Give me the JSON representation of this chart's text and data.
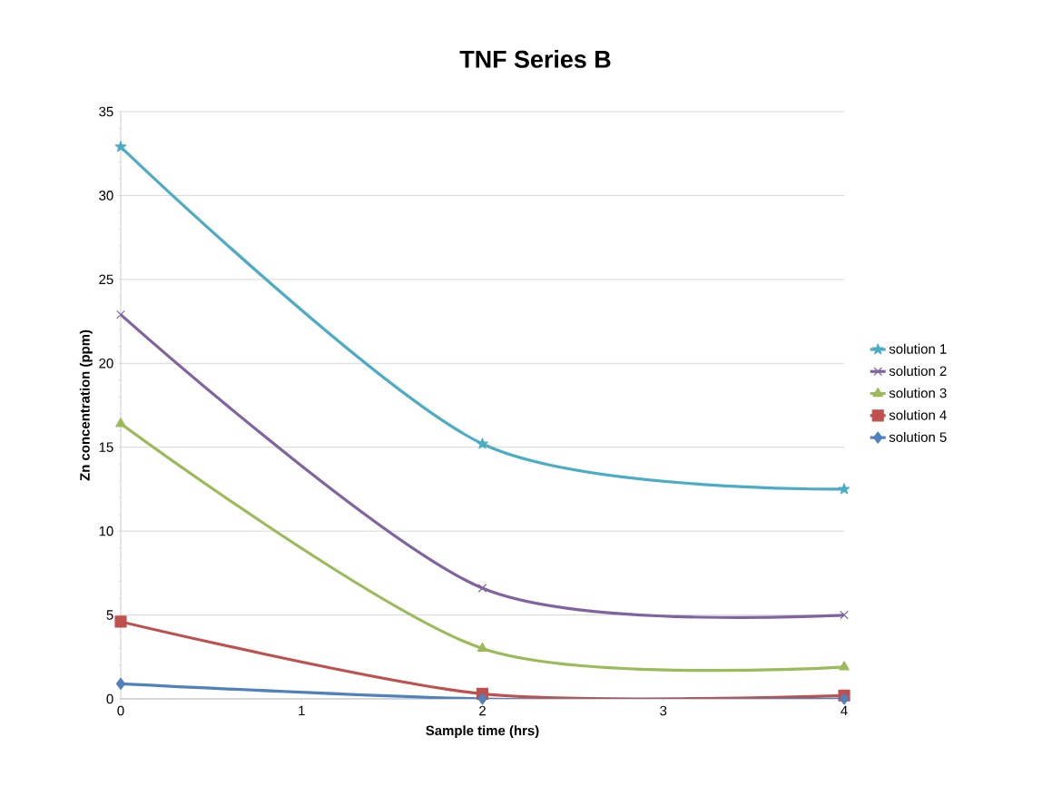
{
  "chart_data": {
    "type": "line",
    "title": "TNF Series B",
    "xlabel": "Sample time (hrs)",
    "ylabel": "Zn concentration (ppm)",
    "xlim": [
      0,
      4
    ],
    "xticks": [
      0,
      1,
      2,
      3,
      4
    ],
    "ylim": [
      0,
      35
    ],
    "yticks": [
      0,
      5,
      10,
      15,
      20,
      25,
      30,
      35
    ],
    "grid": "y",
    "legend": "right",
    "series": [
      {
        "name": "solution 1",
        "color": "#4bacc6",
        "marker": "star",
        "x": [
          0,
          2,
          4
        ],
        "values": [
          32.9,
          15.2,
          12.5
        ]
      },
      {
        "name": "solution 2",
        "color": "#8064a2",
        "marker": "cross",
        "x": [
          0,
          2,
          4
        ],
        "values": [
          22.9,
          6.6,
          5.0
        ]
      },
      {
        "name": "solution 3",
        "color": "#9bbb59",
        "marker": "triangle",
        "x": [
          0,
          2,
          4
        ],
        "values": [
          16.4,
          3.0,
          1.9
        ]
      },
      {
        "name": "solution 4",
        "color": "#c0504d",
        "marker": "square",
        "x": [
          0,
          2,
          4
        ],
        "values": [
          4.6,
          0.3,
          0.2
        ]
      },
      {
        "name": "solution 5",
        "color": "#4f81bd",
        "marker": "diamond",
        "x": [
          0,
          2,
          4
        ],
        "values": [
          0.9,
          0,
          0
        ]
      }
    ]
  }
}
